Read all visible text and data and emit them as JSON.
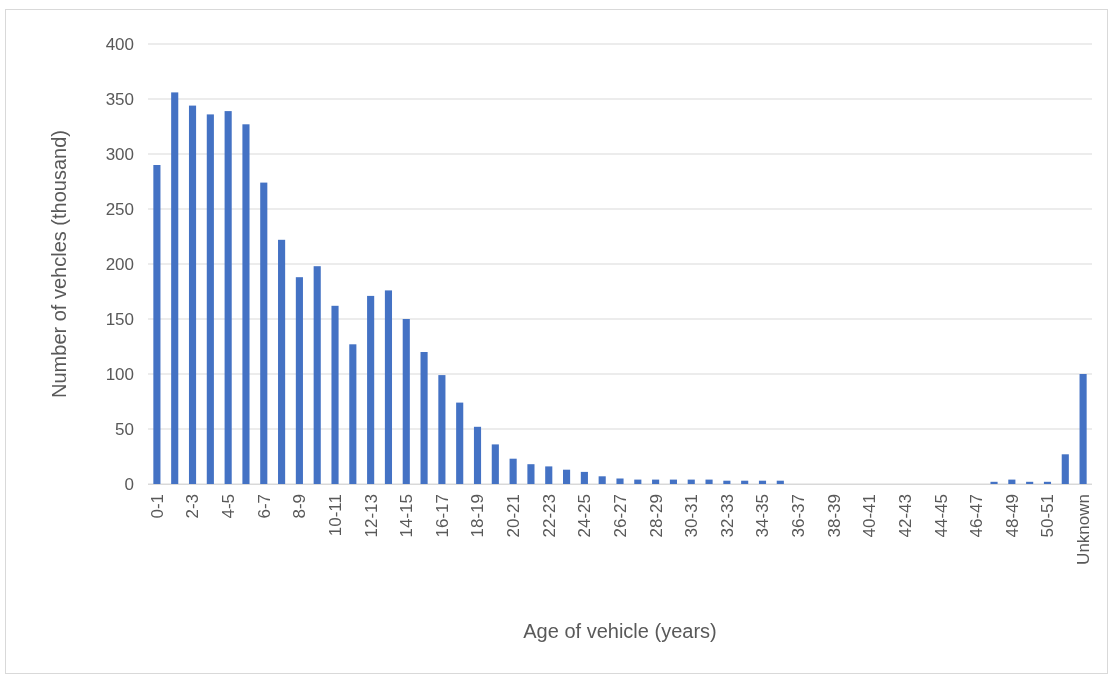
{
  "chart_data": {
    "type": "bar",
    "categories": [
      "0-1",
      null,
      "2-3",
      null,
      "4-5",
      null,
      "6-7",
      null,
      "8-9",
      null,
      "10-11",
      null,
      "12-13",
      null,
      "14-15",
      null,
      "16-17",
      null,
      "18-19",
      null,
      "20-21",
      null,
      "22-23",
      null,
      "24-25",
      null,
      "26-27",
      null,
      "28-29",
      null,
      "30-31",
      null,
      "32-33",
      null,
      "34-35",
      null,
      "36-37",
      null,
      "38-39",
      null,
      "40-41",
      null,
      "42-43",
      null,
      "44-45",
      null,
      "46-47",
      null,
      "48-49",
      null,
      "50-51",
      null,
      "Unknown"
    ],
    "values": [
      290,
      356,
      344,
      336,
      339,
      327,
      274,
      222,
      188,
      198,
      162,
      127,
      171,
      176,
      150,
      120,
      99,
      74,
      52,
      36,
      23,
      18,
      16,
      13,
      11,
      7,
      5,
      4,
      4,
      4,
      4,
      4,
      3,
      3,
      3,
      3,
      0,
      0,
      0,
      0,
      0,
      0,
      0,
      0,
      0,
      0,
      0,
      2,
      4,
      2,
      2,
      27,
      100
    ],
    "color": "#4472c4",
    "xlabel": "Age of vehicle (years)",
    "ylabel": "Number of vehcles (thousand)",
    "ylim": [
      0,
      400
    ],
    "yticks": [
      0,
      50,
      100,
      150,
      200,
      250,
      300,
      350,
      400
    ],
    "grid": "y"
  }
}
